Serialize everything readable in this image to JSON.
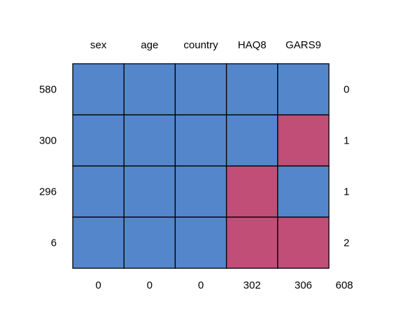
{
  "chart_data": {
    "type": "heatmap",
    "title": "",
    "columns": [
      "sex",
      "age",
      "country",
      "HAQ8",
      "GARS9"
    ],
    "row_counts": [
      "580",
      "300",
      "296",
      "6"
    ],
    "missing_per_row": [
      "0",
      "1",
      "1",
      "2"
    ],
    "matrix": [
      [
        0,
        0,
        0,
        0,
        0
      ],
      [
        0,
        0,
        0,
        0,
        1
      ],
      [
        0,
        0,
        0,
        1,
        0
      ],
      [
        0,
        0,
        0,
        1,
        1
      ]
    ],
    "missing_per_column": [
      "0",
      "0",
      "0",
      "302",
      "306"
    ],
    "total_missing": "608",
    "colors": {
      "observed": "#5486cb",
      "missing": "#c04e77",
      "grid": "#000000"
    }
  }
}
